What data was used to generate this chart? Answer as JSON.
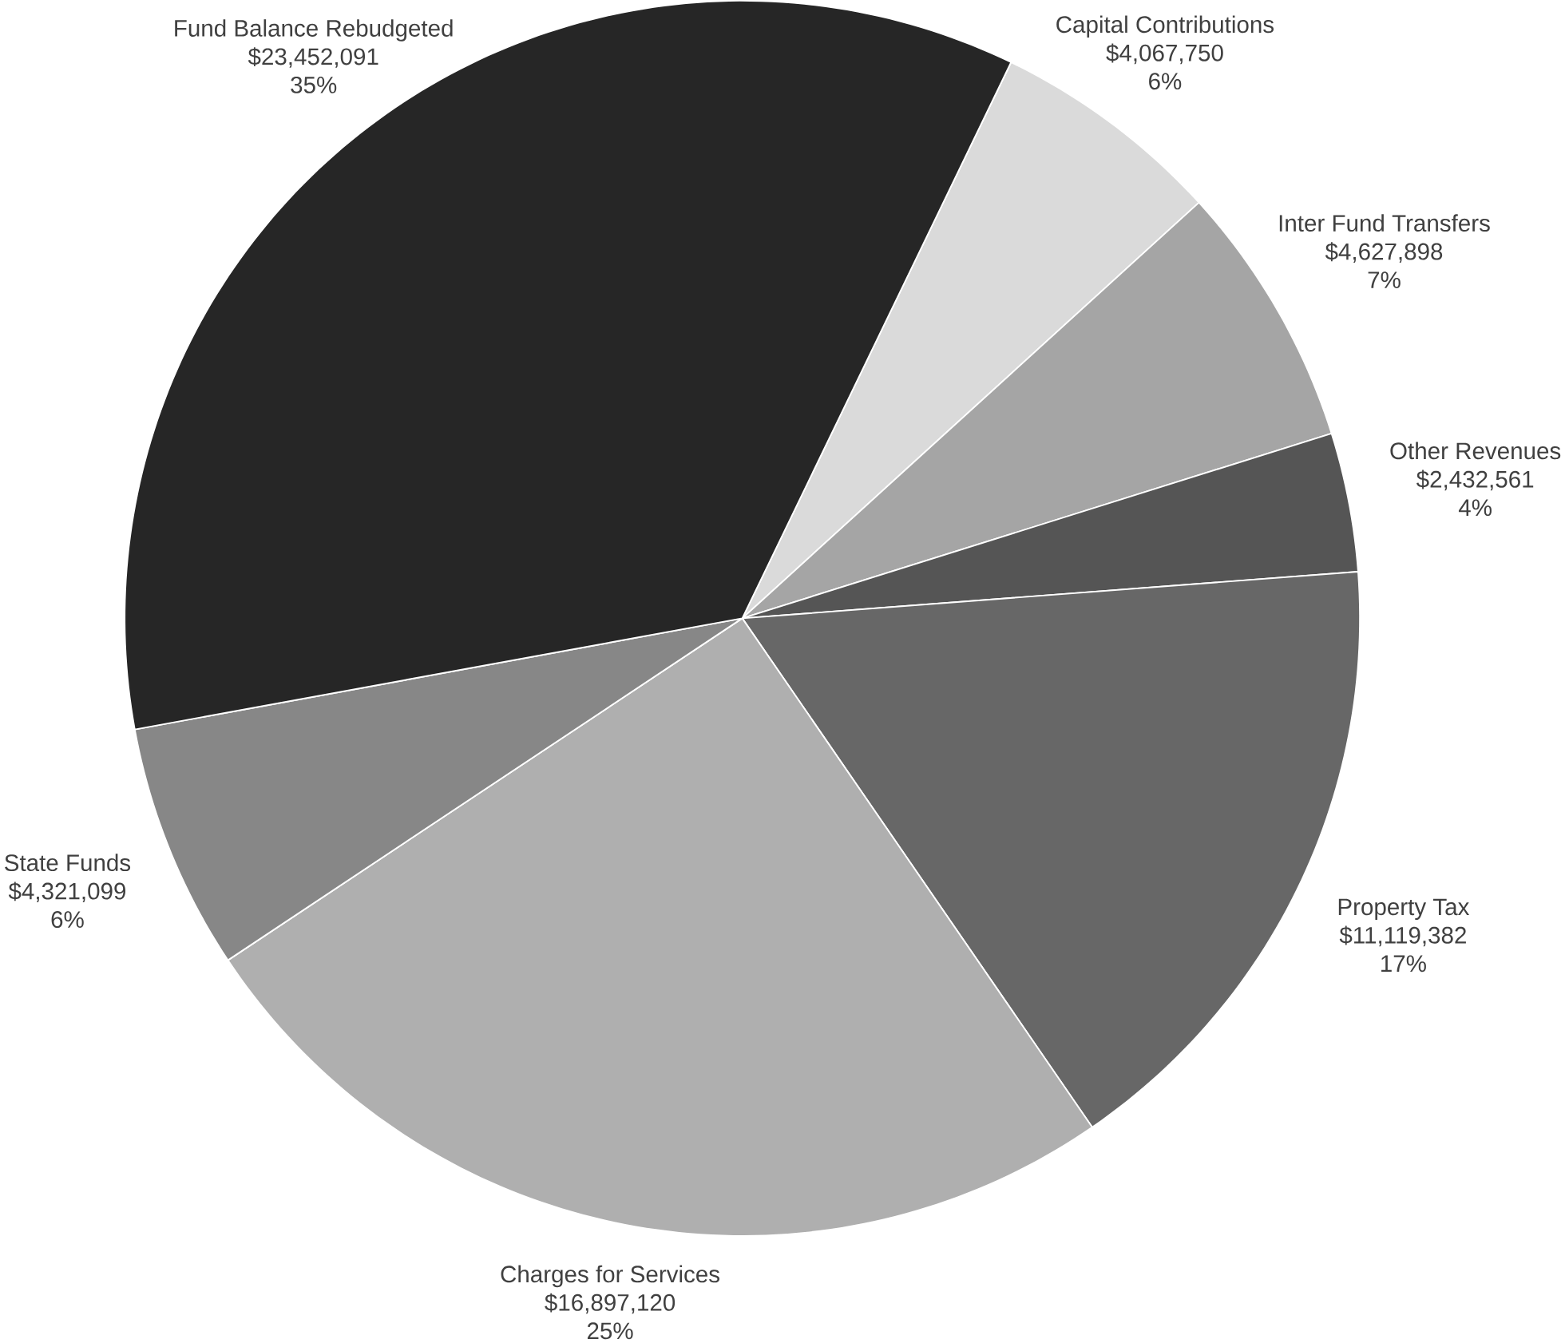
{
  "chart_data": {
    "type": "pie",
    "categories": [
      "Capital Contributions",
      "Inter Fund Transfers",
      "Other Revenues",
      "Property Tax",
      "Charges for Services",
      "State Funds",
      "Fund Balance Rebudgeted"
    ],
    "values": [
      4067750,
      4627898,
      2432561,
      11119382,
      16897120,
      4321099,
      23452091
    ],
    "colors": [
      "#dadada",
      "#a5a5a5",
      "#555555",
      "#676767",
      "#afafaf",
      "#878787",
      "#262626"
    ],
    "value_labels": [
      "$4,067,750",
      "$4,627,898",
      "$2,432,561",
      "$11,119,382",
      "$16,897,120",
      "$4,321,099",
      "$23,452,091"
    ],
    "annotations": [
      "6%",
      "7%",
      "4%",
      "17%",
      "25%",
      "6%",
      "35%"
    ]
  }
}
